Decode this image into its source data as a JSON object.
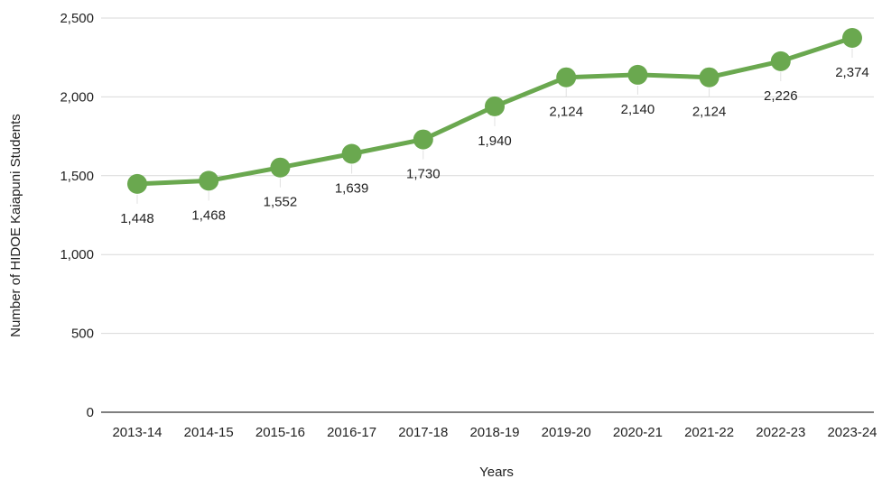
{
  "chart_data": {
    "type": "line",
    "title": "",
    "xlabel": "Years",
    "ylabel": "Number of HIDOE Kaiapuni Students",
    "categories": [
      "2013-14",
      "2014-15",
      "2015-16",
      "2016-17",
      "2017-18",
      "2018-19",
      "2019-20",
      "2020-21",
      "2021-22",
      "2022-23",
      "2023-24"
    ],
    "series": [
      {
        "values": [
          1448,
          1468,
          1552,
          1639,
          1730,
          1940,
          2124,
          2140,
          2124,
          2226,
          2374
        ],
        "data_labels": [
          "1,448",
          "1,468",
          "1,552",
          "1,639",
          "1,730",
          "1,940",
          "2,124",
          "2,140",
          "2,124",
          "2,226",
          "2,374"
        ]
      }
    ],
    "ylim": [
      0,
      2500
    ],
    "yticks": [
      0,
      500,
      1000,
      1500,
      2000,
      2500
    ],
    "ytick_labels": [
      "0",
      "500",
      "1,000",
      "1,500",
      "2,000",
      "2,500"
    ],
    "grid": true,
    "legend": "none",
    "colors": {
      "series": "#6aa84f",
      "grid": "#d9d9d9",
      "axis": "#333333"
    }
  }
}
